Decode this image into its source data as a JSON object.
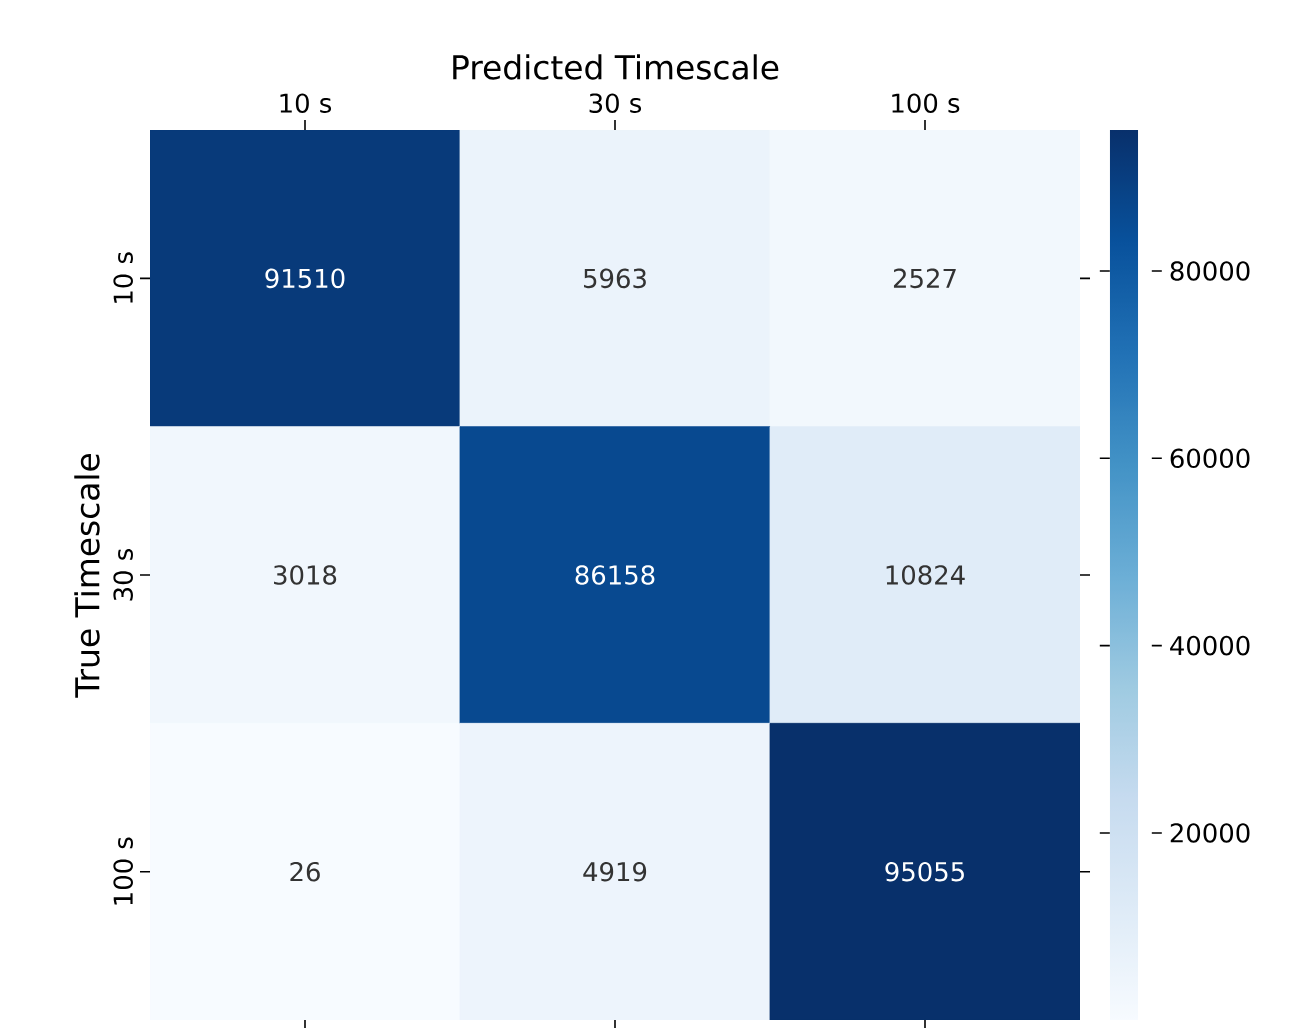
{
  "chart_data": {
    "type": "heatmap",
    "xlabel": "Predicted Timescale",
    "ylabel": "True Timescale",
    "categories": [
      "10 s",
      "30 s",
      "100 s"
    ],
    "y_categories": [
      "10 s",
      "30 s",
      "100 s"
    ],
    "cells": [
      [
        91510,
        5963,
        2527
      ],
      [
        3018,
        86158,
        10824
      ],
      [
        26,
        4919,
        95055
      ]
    ],
    "clim": [
      26,
      95055
    ],
    "cticks": [
      20000,
      40000,
      60000,
      80000
    ],
    "data_labels": true
  }
}
